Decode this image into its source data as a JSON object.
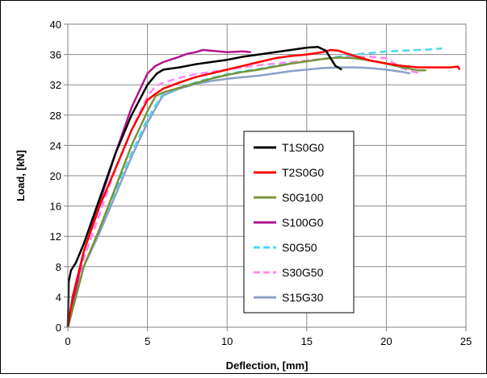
{
  "chart_data": {
    "type": "line",
    "title": "",
    "xlabel": "Deflection, [mm]",
    "ylabel": "Load, [kN]",
    "xlim": [
      0,
      25
    ],
    "ylim": [
      0,
      40
    ],
    "xticks": [
      0,
      5,
      10,
      15,
      20,
      25
    ],
    "yticks": [
      0,
      4,
      8,
      12,
      16,
      20,
      24,
      28,
      32,
      36,
      40
    ],
    "grid": true,
    "legend_position": "center-right",
    "series": [
      {
        "name": "T1S0G0",
        "color": "#000000",
        "dash": "solid",
        "x": [
          0,
          0.05,
          0.2,
          0.5,
          1,
          2,
          3,
          4,
          5,
          5.6,
          6,
          7,
          8,
          9,
          10,
          11,
          12,
          13,
          14,
          15,
          15.7,
          16.2,
          16.8,
          17.2
        ],
        "y": [
          0,
          6,
          7.5,
          8.5,
          11,
          17,
          23,
          28,
          32,
          33.5,
          34,
          34.3,
          34.7,
          35,
          35.3,
          35.7,
          36,
          36.3,
          36.6,
          36.9,
          37,
          36.5,
          34.5,
          34
        ]
      },
      {
        "name": "T2S0G0",
        "color": "#ff0000",
        "dash": "solid",
        "x": [
          0,
          0.3,
          1,
          2,
          3,
          4,
          5,
          5.5,
          6,
          7,
          8,
          9,
          10,
          11,
          12,
          13,
          14,
          15,
          16,
          16.5,
          17,
          18,
          19,
          20,
          21,
          22,
          23,
          24,
          24.5,
          24.6
        ],
        "y": [
          0,
          4,
          10,
          16,
          21,
          26,
          30,
          30.8,
          31.5,
          32.3,
          33,
          33.5,
          34,
          34.5,
          35,
          35.5,
          35.8,
          36,
          36.3,
          36.6,
          36.5,
          35.8,
          35.2,
          34.8,
          34.5,
          34.3,
          34.3,
          34.3,
          34.4,
          34
        ]
      },
      {
        "name": "S0G100",
        "color": "#77933c",
        "dash": "solid",
        "x": [
          0,
          0.5,
          1,
          2,
          3,
          4,
          5,
          5.5,
          6,
          7,
          8,
          9,
          10,
          11,
          12,
          13,
          14,
          15,
          16,
          17,
          18,
          19,
          20,
          21,
          22,
          22.5
        ],
        "y": [
          0,
          4,
          8,
          13,
          18.5,
          24,
          28.5,
          30.5,
          31,
          31.6,
          32.2,
          32.8,
          33.3,
          33.7,
          34,
          34.4,
          34.8,
          35.1,
          35.4,
          35.6,
          35.5,
          35.2,
          34.8,
          34.3,
          33.9,
          33.9
        ]
      },
      {
        "name": "S100G0",
        "color": "#b0168f",
        "dash": "solid",
        "x": [
          0,
          0.3,
          1,
          2,
          3,
          4,
          5,
          5.5,
          6,
          7,
          7.5,
          8,
          8.5,
          9,
          10,
          11,
          11.5
        ],
        "y": [
          0,
          3,
          10,
          16.5,
          23,
          29,
          33.5,
          34.5,
          35,
          35.7,
          36.1,
          36.3,
          36.6,
          36.5,
          36.3,
          36.4,
          36.3
        ]
      },
      {
        "name": "S0G50",
        "color": "#4fd6ee",
        "dash": "dashed",
        "x": [
          0,
          0.5,
          1,
          2,
          3,
          4,
          5,
          5.8,
          6,
          7,
          8,
          9,
          10,
          11,
          12,
          13,
          14,
          15,
          16,
          17,
          18,
          19,
          20,
          21,
          22,
          23,
          23.5
        ],
        "y": [
          0,
          4,
          8,
          13,
          18,
          23,
          27.5,
          30.3,
          30.8,
          31.6,
          32.3,
          32.9,
          33.4,
          33.8,
          34.1,
          34.5,
          34.8,
          35.1,
          35.4,
          35.7,
          36,
          36.2,
          36.4,
          36.5,
          36.6,
          36.7,
          36.8
        ]
      },
      {
        "name": "S30G50",
        "color": "#ff88ee",
        "dash": "dashed",
        "x": [
          0,
          0.3,
          1,
          2,
          3,
          4,
          5,
          5.5,
          6,
          7,
          8,
          9,
          10,
          11,
          12,
          13,
          14,
          15,
          16,
          17,
          18,
          19,
          20,
          20.5,
          21,
          21.5,
          22
        ],
        "y": [
          0,
          3,
          9,
          15,
          21,
          26,
          30.5,
          31.8,
          32.3,
          32.9,
          33.4,
          33.7,
          34,
          34.3,
          34.6,
          34.8,
          35,
          35.2,
          35.4,
          35.6,
          35.7,
          35.7,
          35.5,
          34.8,
          34.2,
          33.8,
          33.6
        ]
      },
      {
        "name": "S15G30",
        "color": "#8aa0c8",
        "dash": "solid",
        "x": [
          0,
          0.5,
          1,
          2,
          3,
          4,
          5,
          5.8,
          6,
          7,
          8,
          9,
          10,
          11,
          12,
          13,
          14,
          15,
          16,
          17,
          18,
          19,
          20,
          21,
          21.5
        ],
        "y": [
          0,
          4,
          8,
          12.5,
          17.5,
          22.5,
          27,
          30,
          30.6,
          31.5,
          32.1,
          32.5,
          32.8,
          33,
          33.2,
          33.5,
          33.8,
          34,
          34.2,
          34.3,
          34.3,
          34.2,
          34,
          33.7,
          33.5
        ]
      }
    ]
  }
}
